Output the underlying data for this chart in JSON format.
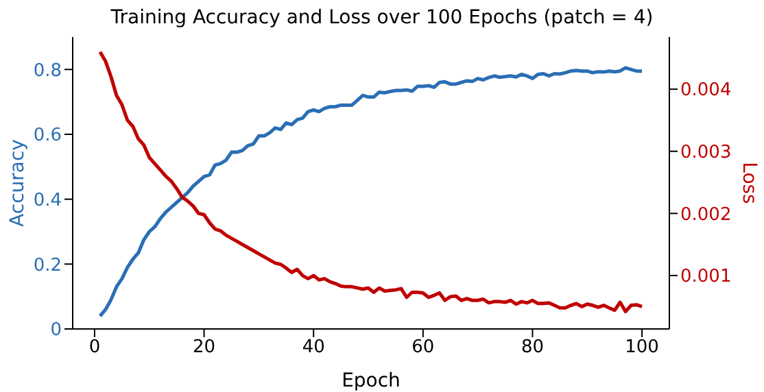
{
  "chart_data": {
    "type": "line",
    "title": "Training Accuracy and Loss over 100 Epochs (patch = 4)",
    "xlabel": "Epoch",
    "ylabel": "Accuracy",
    "y2label": "Loss",
    "x": [
      1,
      2,
      3,
      4,
      5,
      6,
      7,
      8,
      9,
      10,
      11,
      12,
      13,
      14,
      15,
      16,
      17,
      18,
      19,
      20,
      21,
      22,
      23,
      24,
      25,
      26,
      27,
      28,
      29,
      30,
      31,
      32,
      33,
      34,
      35,
      36,
      37,
      38,
      39,
      40,
      41,
      42,
      43,
      44,
      45,
      46,
      47,
      48,
      49,
      50,
      51,
      52,
      53,
      54,
      55,
      56,
      57,
      58,
      59,
      60,
      61,
      62,
      63,
      64,
      65,
      66,
      67,
      68,
      69,
      70,
      71,
      72,
      73,
      74,
      75,
      76,
      77,
      78,
      79,
      80,
      81,
      82,
      83,
      84,
      85,
      86,
      87,
      88,
      89,
      90,
      91,
      92,
      93,
      94,
      95,
      96,
      97,
      98,
      99,
      100
    ],
    "series": [
      {
        "name": null,
        "color": "#2a6eb4",
        "values": [
          0.04,
          0.06,
          0.09,
          0.13,
          0.155,
          0.19,
          0.215,
          0.235,
          0.275,
          0.3,
          0.315,
          0.34,
          0.36,
          0.375,
          0.39,
          0.405,
          0.42,
          0.44,
          0.455,
          0.47,
          0.475,
          0.505,
          0.51,
          0.52,
          0.545,
          0.545,
          0.55,
          0.565,
          0.57,
          0.595,
          0.595,
          0.605,
          0.62,
          0.615,
          0.635,
          0.63,
          0.645,
          0.65,
          0.67,
          0.675,
          0.67,
          0.68,
          0.685,
          0.685,
          0.69,
          0.69,
          0.69,
          0.705,
          0.72,
          0.715,
          0.715,
          0.73,
          0.728,
          0.732,
          0.735,
          0.735,
          0.737,
          0.733,
          0.748,
          0.748,
          0.75,
          0.745,
          0.76,
          0.762,
          0.755,
          0.755,
          0.76,
          0.765,
          0.763,
          0.772,
          0.768,
          0.775,
          0.78,
          0.776,
          0.778,
          0.78,
          0.777,
          0.785,
          0.78,
          0.772,
          0.785,
          0.787,
          0.78,
          0.787,
          0.786,
          0.79,
          0.795,
          0.797,
          0.795,
          0.795,
          0.79,
          0.793,
          0.792,
          0.795,
          0.793,
          0.795,
          0.805,
          0.8,
          0.795,
          0.795
        ]
      },
      {
        "name": null,
        "color": "#c00000",
        "axis": "y2",
        "values": [
          0.0046,
          0.00445,
          0.0042,
          0.0039,
          0.00375,
          0.0035,
          0.0034,
          0.0032,
          0.0031,
          0.0029,
          0.0028,
          0.0027,
          0.0026,
          0.00252,
          0.0024,
          0.00226,
          0.0022,
          0.00212,
          0.002,
          0.00198,
          0.00185,
          0.00175,
          0.00172,
          0.00165,
          0.0016,
          0.00155,
          0.0015,
          0.00145,
          0.0014,
          0.00135,
          0.0013,
          0.00125,
          0.0012,
          0.00118,
          0.00112,
          0.00105,
          0.0011,
          0.001,
          0.00095,
          0.001,
          0.00093,
          0.00095,
          0.0009,
          0.00087,
          0.00083,
          0.00082,
          0.00082,
          0.0008,
          0.00078,
          0.0008,
          0.00073,
          0.0008,
          0.00075,
          0.00076,
          0.00077,
          0.00079,
          0.00065,
          0.00073,
          0.00073,
          0.00072,
          0.00065,
          0.00068,
          0.00072,
          0.0006,
          0.00066,
          0.00067,
          0.0006,
          0.00063,
          0.0006,
          0.0006,
          0.00062,
          0.00056,
          0.00058,
          0.00058,
          0.00057,
          0.0006,
          0.00054,
          0.00058,
          0.00056,
          0.0006,
          0.00055,
          0.00055,
          0.00056,
          0.00052,
          0.00048,
          0.00048,
          0.00052,
          0.00055,
          0.0005,
          0.00054,
          0.00052,
          0.00049,
          0.00052,
          0.00048,
          0.00044,
          0.00057,
          0.00042,
          0.00052,
          0.00053,
          0.0005
        ]
      }
    ],
    "xlim": [
      -4,
      105
    ],
    "xticks": [
      0,
      20,
      40,
      60,
      80,
      100
    ],
    "ylim": [
      0,
      0.9
    ],
    "yticks": [
      0,
      0.2,
      0.4,
      0.6,
      0.8
    ],
    "y2lim": [
      0.00014,
      0.00484
    ],
    "y2ticks": [
      0.001,
      0.002,
      0.003,
      0.004
    ],
    "grid": false,
    "legend": false
  }
}
